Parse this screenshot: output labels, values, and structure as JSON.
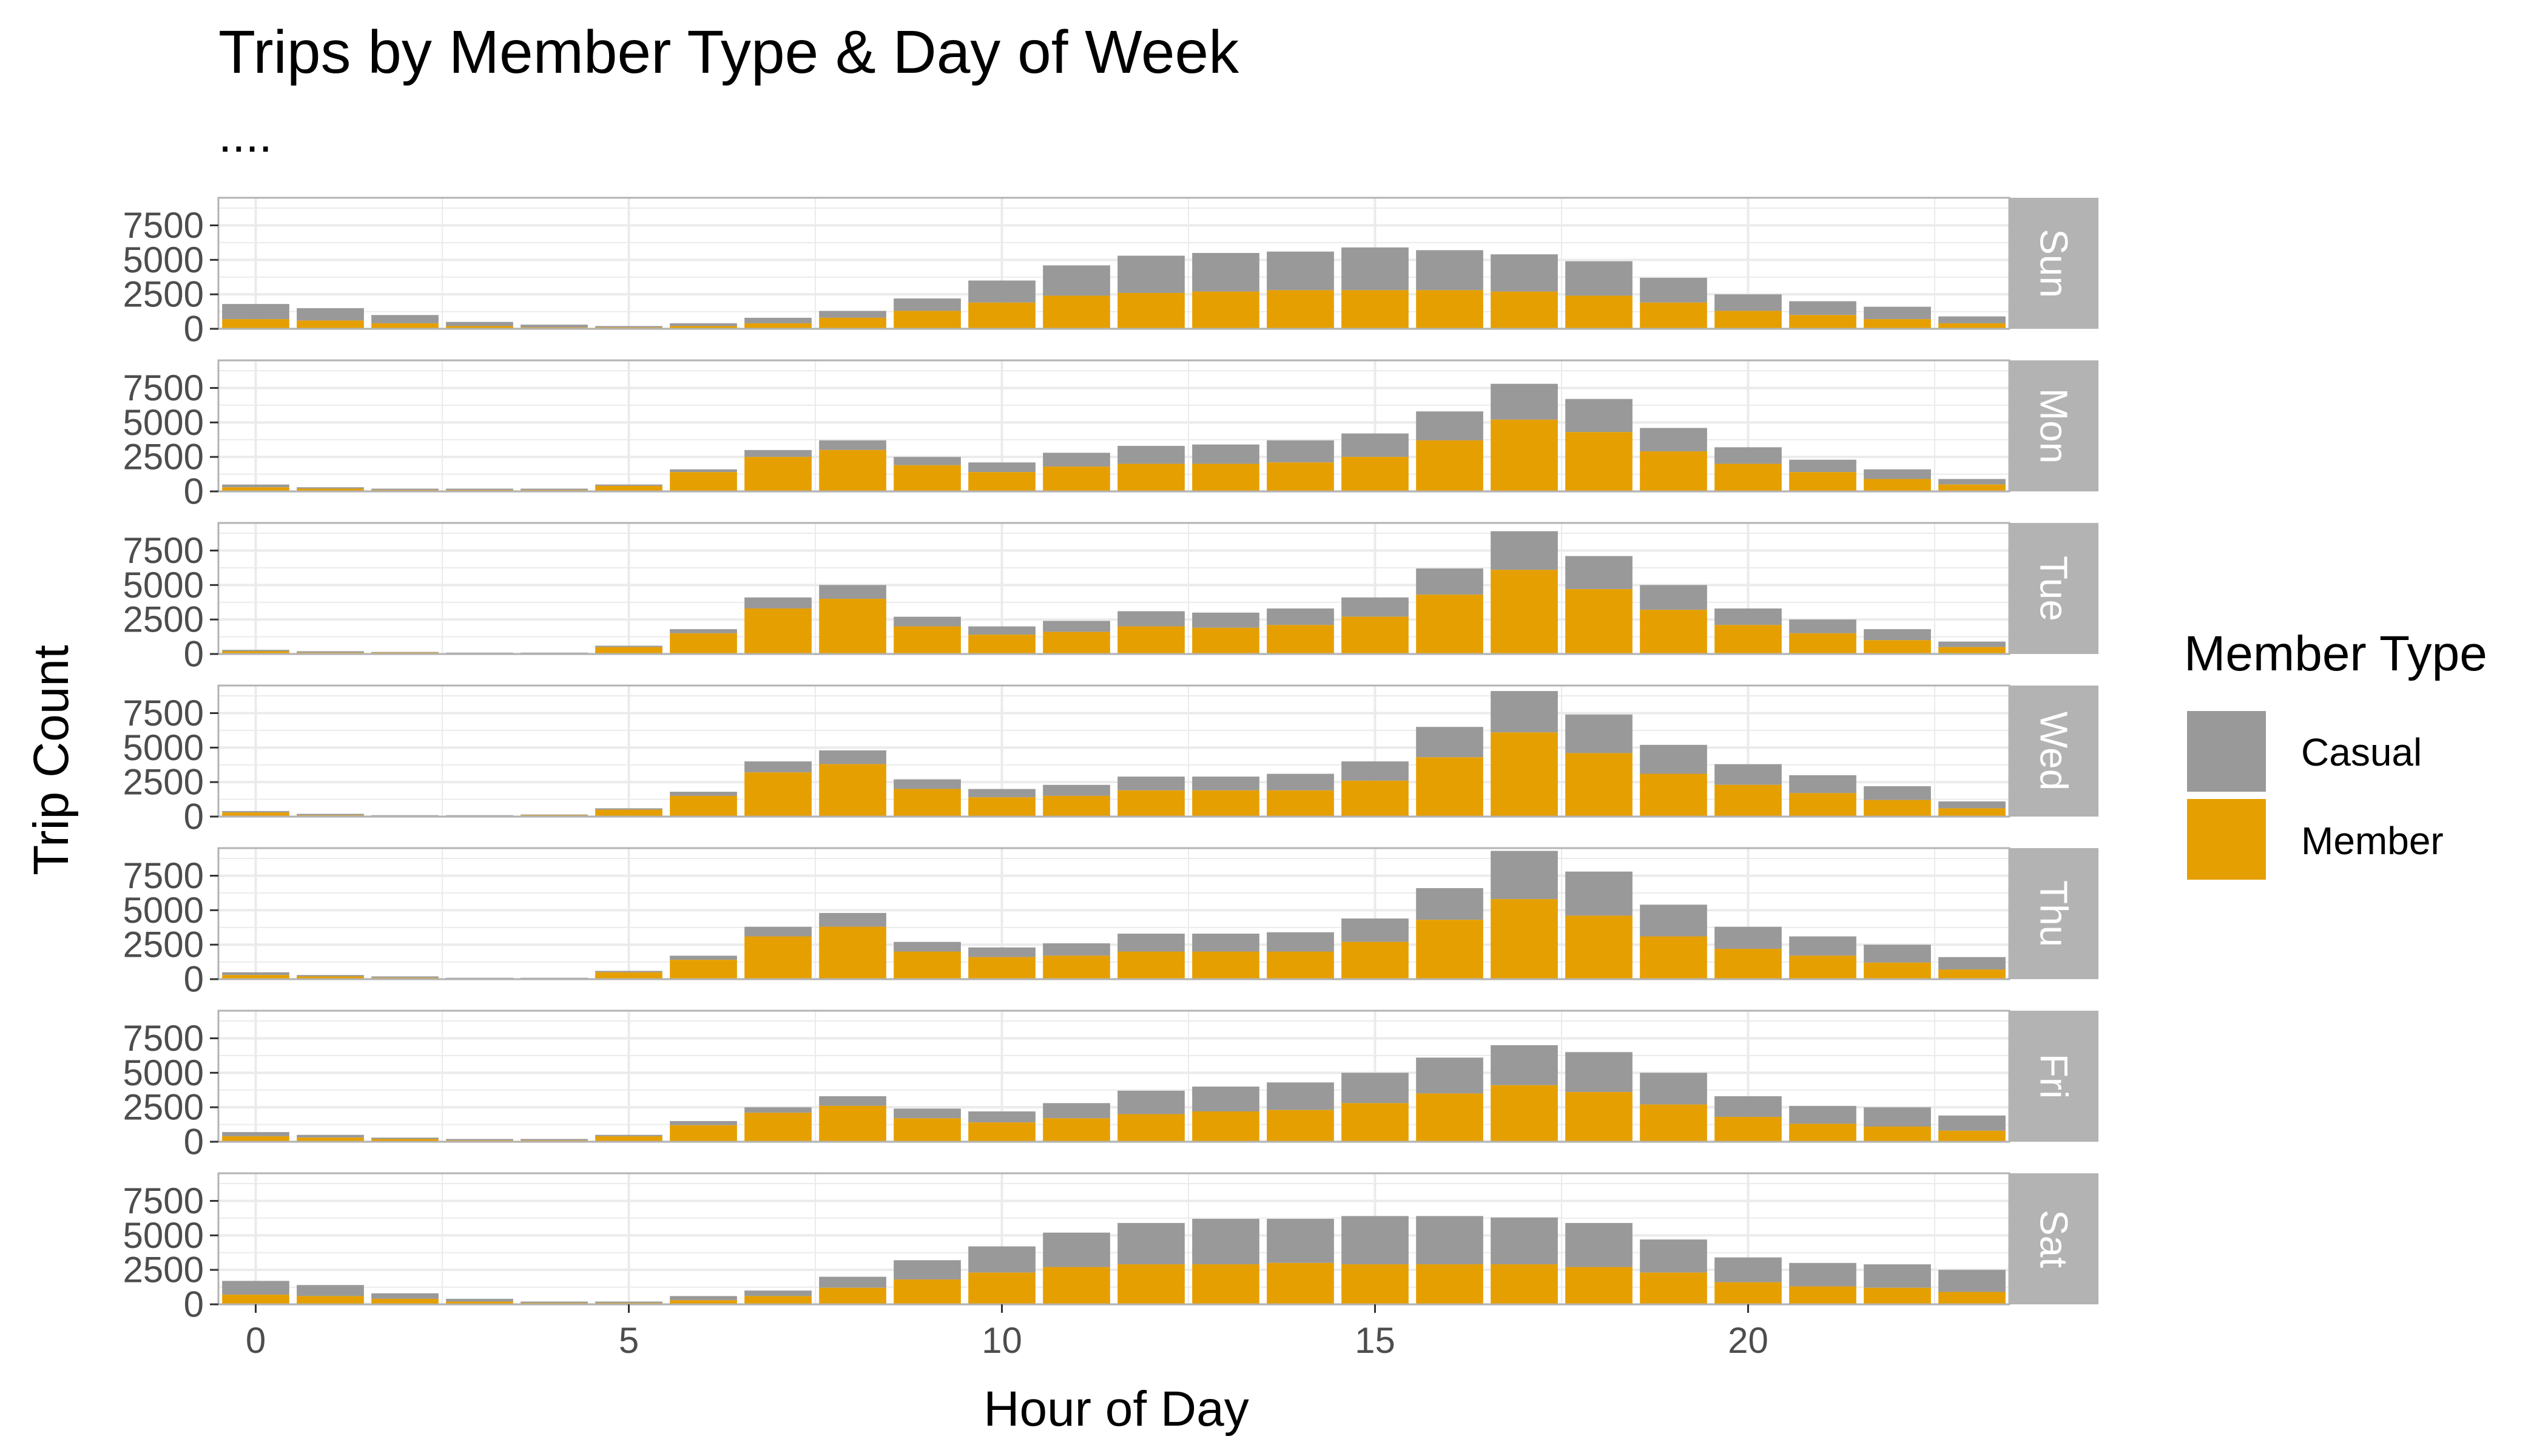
{
  "chart_data": {
    "type": "bar",
    "stacked": true,
    "title": "Trips by Member Type & Day of Week",
    "subtitle": "....",
    "xlabel": "Hour of Day",
    "ylabel": "Trip Count",
    "x_ticks": [
      0,
      5,
      10,
      15,
      20
    ],
    "y_ticks": [
      0,
      2500,
      5000,
      7500
    ],
    "ylim": [
      0,
      9500
    ],
    "xlim": [
      -0.5,
      23.5
    ],
    "grid": true,
    "legend": {
      "title": "Member Type",
      "placement": "right",
      "entries": [
        "Casual",
        "Member"
      ]
    },
    "colors": {
      "Casual": "#999999",
      "Member": "#E69F00",
      "strip": "#b3b3b3",
      "grid": "#ebebeb",
      "panel_border": "#b3b3b3"
    },
    "hours": [
      0,
      1,
      2,
      3,
      4,
      5,
      6,
      7,
      8,
      9,
      10,
      11,
      12,
      13,
      14,
      15,
      16,
      17,
      18,
      19,
      20,
      21,
      22,
      23
    ],
    "panels": [
      {
        "day": "Sun",
        "member": [
          700,
          600,
          400,
          200,
          100,
          100,
          200,
          400,
          800,
          1300,
          1900,
          2400,
          2600,
          2700,
          2800,
          2800,
          2800,
          2700,
          2400,
          1900,
          1300,
          1000,
          700,
          400
        ],
        "casual": [
          1100,
          900,
          600,
          300,
          200,
          100,
          200,
          400,
          500,
          900,
          1600,
          2200,
          2700,
          2800,
          2800,
          3100,
          2900,
          2700,
          2500,
          1800,
          1200,
          1000,
          900,
          500
        ]
      },
      {
        "day": "Mon",
        "member": [
          300,
          200,
          100,
          100,
          100,
          400,
          1400,
          2500,
          3000,
          1900,
          1400,
          1800,
          2000,
          2000,
          2100,
          2500,
          3700,
          5200,
          4300,
          2900,
          2000,
          1400,
          900,
          500
        ],
        "casual": [
          200,
          100,
          100,
          100,
          100,
          100,
          200,
          500,
          700,
          600,
          700,
          1000,
          1300,
          1400,
          1600,
          1700,
          2100,
          2600,
          2400,
          1700,
          1200,
          900,
          700,
          400
        ]
      },
      {
        "day": "Tue",
        "member": [
          200,
          100,
          100,
          50,
          50,
          500,
          1500,
          3300,
          4000,
          2000,
          1400,
          1600,
          2000,
          1900,
          2100,
          2700,
          4300,
          6100,
          4700,
          3200,
          2100,
          1500,
          1000,
          500
        ],
        "casual": [
          100,
          100,
          50,
          50,
          50,
          100,
          300,
          800,
          1000,
          700,
          600,
          800,
          1100,
          1100,
          1200,
          1400,
          1900,
          2800,
          2400,
          1800,
          1200,
          1000,
          800,
          400
        ]
      },
      {
        "day": "Wed",
        "member": [
          300,
          100,
          50,
          50,
          100,
          500,
          1500,
          3200,
          3800,
          2000,
          1400,
          1500,
          1900,
          1900,
          1900,
          2600,
          4300,
          6100,
          4600,
          3100,
          2300,
          1700,
          1200,
          600
        ],
        "casual": [
          100,
          100,
          50,
          50,
          50,
          100,
          300,
          800,
          1000,
          700,
          600,
          800,
          1000,
          1000,
          1200,
          1400,
          2200,
          3000,
          2800,
          2100,
          1500,
          1300,
          1000,
          500
        ]
      },
      {
        "day": "Thu",
        "member": [
          300,
          200,
          100,
          50,
          50,
          500,
          1400,
          3100,
          3800,
          2000,
          1600,
          1700,
          2000,
          2000,
          2000,
          2700,
          4300,
          5800,
          4600,
          3100,
          2200,
          1700,
          1200,
          700
        ],
        "casual": [
          200,
          100,
          100,
          50,
          50,
          100,
          300,
          700,
          1000,
          700,
          700,
          900,
          1300,
          1300,
          1400,
          1700,
          2300,
          3500,
          3200,
          2300,
          1600,
          1400,
          1300,
          900
        ]
      },
      {
        "day": "Fri",
        "member": [
          400,
          300,
          200,
          100,
          100,
          400,
          1200,
          2100,
          2600,
          1700,
          1400,
          1700,
          2000,
          2200,
          2300,
          2800,
          3500,
          4100,
          3600,
          2700,
          1800,
          1300,
          1100,
          800
        ],
        "casual": [
          300,
          200,
          100,
          100,
          100,
          100,
          300,
          400,
          700,
          700,
          800,
          1100,
          1700,
          1800,
          2000,
          2200,
          2600,
          2900,
          2900,
          2300,
          1500,
          1300,
          1400,
          1100
        ]
      },
      {
        "day": "Sat",
        "member": [
          700,
          600,
          400,
          200,
          100,
          100,
          300,
          600,
          1200,
          1800,
          2300,
          2700,
          2900,
          2900,
          3000,
          2900,
          2900,
          2900,
          2700,
          2300,
          1600,
          1300,
          1200,
          900
        ],
        "casual": [
          1000,
          800,
          400,
          200,
          100,
          100,
          300,
          400,
          800,
          1400,
          1900,
          2500,
          3000,
          3300,
          3200,
          3500,
          3500,
          3400,
          3200,
          2400,
          1800,
          1700,
          1700,
          1600
        ]
      }
    ]
  }
}
